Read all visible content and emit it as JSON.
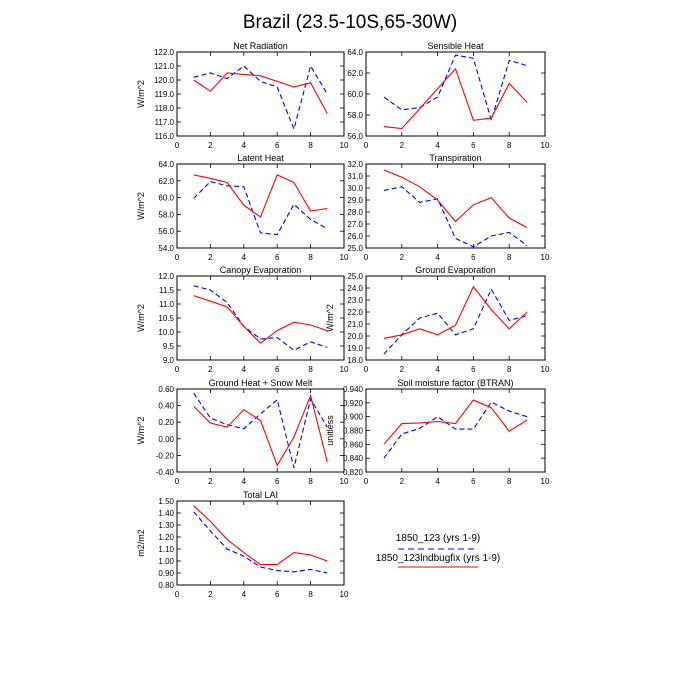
{
  "title": "Brazil (23.5-10S,65-30W)",
  "legend": {
    "entries": [
      {
        "label": "1850_123 (yrs 1-9)",
        "style": "dashed",
        "color": "#0000ff"
      },
      {
        "label": "1850_123lndbugfix (yrs 1-9)",
        "style": "solid",
        "color": "#ff0000"
      }
    ]
  },
  "chart_data": [
    {
      "type": "line",
      "title": "Net Radiation",
      "xlabel": "",
      "ylabel": "W/m^2",
      "xlim": [
        0,
        10
      ],
      "ylim": [
        116.0,
        122.0
      ],
      "xticks": [
        0,
        2,
        4,
        6,
        8,
        10
      ],
      "yticks": [
        116.0,
        117.0,
        118.0,
        119.0,
        120.0,
        121.0,
        122.0
      ],
      "x": [
        1,
        2,
        3,
        4,
        5,
        6,
        7,
        8,
        9
      ],
      "series": [
        {
          "name": "1850_123 (yrs 1-9)",
          "color": "#0000ff",
          "style": "dashed",
          "values": [
            120.2,
            120.5,
            120.1,
            121.0,
            119.9,
            119.5,
            116.5,
            121.0,
            119.0
          ]
        },
        {
          "name": "1850_123lndbugfix (yrs 1-9)",
          "color": "#ff0000",
          "style": "solid",
          "values": [
            120.0,
            119.2,
            120.5,
            120.4,
            120.3,
            119.9,
            119.5,
            119.8,
            117.6
          ]
        }
      ]
    },
    {
      "type": "line",
      "title": "Sensible Heat",
      "xlabel": "",
      "ylabel": "",
      "xlim": [
        0,
        10
      ],
      "ylim": [
        56.0,
        64.0
      ],
      "xticks": [
        0,
        2,
        4,
        6,
        8,
        10
      ],
      "yticks": [
        56.0,
        58.0,
        60.0,
        62.0,
        64.0
      ],
      "x": [
        1,
        2,
        3,
        4,
        5,
        6,
        7,
        8,
        9
      ],
      "series": [
        {
          "name": "1850_123 (yrs 1-9)",
          "color": "#0000ff",
          "style": "dashed",
          "values": [
            59.7,
            58.5,
            58.7,
            59.7,
            63.7,
            63.4,
            57.5,
            63.2,
            62.7
          ]
        },
        {
          "name": "1850_123lndbugfix (yrs 1-9)",
          "color": "#ff0000",
          "style": "solid",
          "values": [
            56.9,
            56.7,
            58.6,
            60.5,
            62.4,
            57.5,
            57.7,
            61.0,
            59.2
          ]
        }
      ]
    },
    {
      "type": "line",
      "title": "Latent Heat",
      "xlabel": "",
      "ylabel": "W/m^2",
      "xlim": [
        0,
        10
      ],
      "ylim": [
        54.0,
        64.0
      ],
      "xticks": [
        0,
        2,
        4,
        6,
        8,
        10
      ],
      "yticks": [
        54.0,
        56.0,
        58.0,
        60.0,
        62.0,
        64.0
      ],
      "x": [
        1,
        2,
        3,
        4,
        5,
        6,
        7,
        8,
        9
      ],
      "series": [
        {
          "name": "1850_123 (yrs 1-9)",
          "color": "#0000ff",
          "style": "dashed",
          "values": [
            59.9,
            61.9,
            61.4,
            61.3,
            55.8,
            55.6,
            59.2,
            57.4,
            56.3
          ]
        },
        {
          "name": "1850_123lndbugfix (yrs 1-9)",
          "color": "#ff0000",
          "style": "solid",
          "values": [
            62.7,
            62.3,
            61.8,
            59.1,
            57.7,
            62.7,
            61.8,
            58.4,
            58.7
          ]
        }
      ]
    },
    {
      "type": "line",
      "title": "Transpiration",
      "xlabel": "",
      "ylabel": "",
      "xlim": [
        0,
        10
      ],
      "ylim": [
        25.0,
        32.0
      ],
      "xticks": [
        0,
        2,
        4,
        6,
        8,
        10
      ],
      "yticks": [
        25.0,
        26.0,
        27.0,
        28.0,
        29.0,
        30.0,
        31.0,
        32.0
      ],
      "x": [
        1,
        2,
        3,
        4,
        5,
        6,
        7,
        8,
        9
      ],
      "series": [
        {
          "name": "1850_123 (yrs 1-9)",
          "color": "#0000ff",
          "style": "dashed",
          "values": [
            29.8,
            30.1,
            28.8,
            29.1,
            25.8,
            25.1,
            26.0,
            26.3,
            25.2
          ]
        },
        {
          "name": "1850_123lndbugfix (yrs 1-9)",
          "color": "#ff0000",
          "style": "solid",
          "values": [
            31.5,
            30.9,
            30.1,
            29.0,
            27.2,
            28.6,
            29.2,
            27.5,
            26.7
          ]
        }
      ]
    },
    {
      "type": "line",
      "title": "Canopy Evaporation",
      "xlabel": "",
      "ylabel": "W/m^2",
      "xlim": [
        0,
        10
      ],
      "ylim": [
        9.0,
        12.0
      ],
      "xticks": [
        0,
        2,
        4,
        6,
        8,
        10
      ],
      "yticks": [
        9.0,
        9.5,
        10.0,
        10.5,
        11.0,
        11.5,
        12.0
      ],
      "x": [
        1,
        2,
        3,
        4,
        5,
        6,
        7,
        8,
        9
      ],
      "series": [
        {
          "name": "1850_123 (yrs 1-9)",
          "color": "#0000ff",
          "style": "dashed",
          "values": [
            11.65,
            11.5,
            11.05,
            10.2,
            9.75,
            9.8,
            9.35,
            9.65,
            9.45
          ]
        },
        {
          "name": "1850_123lndbugfix (yrs 1-9)",
          "color": "#ff0000",
          "style": "solid",
          "values": [
            11.3,
            11.1,
            10.9,
            10.2,
            9.6,
            10.05,
            10.35,
            10.25,
            10.05
          ]
        }
      ]
    },
    {
      "type": "line",
      "title": "Ground Evaporation",
      "xlabel": "",
      "ylabel": "W/m^2",
      "xlim": [
        0,
        10
      ],
      "ylim": [
        18.0,
        25.0
      ],
      "xticks": [
        0,
        2,
        4,
        6,
        8,
        10
      ],
      "yticks": [
        18.0,
        19.0,
        20.0,
        21.0,
        22.0,
        23.0,
        24.0,
        25.0
      ],
      "x": [
        1,
        2,
        3,
        4,
        5,
        6,
        7,
        8,
        9
      ],
      "series": [
        {
          "name": "1850_123 (yrs 1-9)",
          "color": "#0000ff",
          "style": "dashed",
          "values": [
            18.5,
            20.1,
            21.5,
            21.9,
            20.1,
            20.6,
            23.9,
            21.3,
            21.7
          ]
        },
        {
          "name": "1850_123lndbugfix (yrs 1-9)",
          "color": "#ff0000",
          "style": "solid",
          "values": [
            19.8,
            20.1,
            20.6,
            20.1,
            20.9,
            24.1,
            22.2,
            20.6,
            22.0
          ]
        }
      ]
    },
    {
      "type": "line",
      "title": "Ground Heat + Snow Melt",
      "xlabel": "",
      "ylabel": "W/m^2",
      "xlim": [
        0,
        10
      ],
      "ylim": [
        -0.4,
        0.6
      ],
      "xticks": [
        0,
        2,
        4,
        6,
        8,
        10
      ],
      "yticks": [
        -0.4,
        -0.2,
        0.0,
        0.2,
        0.4,
        0.6
      ],
      "ytick_labels": [
        "-0.40",
        "-0.20",
        "0.00",
        "0.20",
        "0.40",
        "0.60"
      ],
      "x": [
        1,
        2,
        3,
        4,
        5,
        6,
        7,
        8,
        9
      ],
      "series": [
        {
          "name": "1850_123 (yrs 1-9)",
          "color": "#0000ff",
          "style": "dashed",
          "values": [
            0.55,
            0.25,
            0.17,
            0.12,
            0.3,
            0.47,
            -0.35,
            0.48,
            0.14
          ]
        },
        {
          "name": "1850_123lndbugfix (yrs 1-9)",
          "color": "#ff0000",
          "style": "solid",
          "values": [
            0.39,
            0.19,
            0.14,
            0.35,
            0.22,
            -0.32,
            0.02,
            0.52,
            -0.28
          ]
        }
      ]
    },
    {
      "type": "line",
      "title": "Soil moisture factor (BTRAN)",
      "xlabel": "",
      "ylabel": "unitless",
      "xlim": [
        0,
        10
      ],
      "ylim": [
        0.82,
        0.94
      ],
      "xticks": [
        0,
        2,
        4,
        6,
        8,
        10
      ],
      "yticks": [
        0.82,
        0.84,
        0.86,
        0.88,
        0.9,
        0.92,
        0.94
      ],
      "ytick_labels": [
        "0.820",
        "0.840",
        "0.860",
        "0.880",
        "0.900",
        "0.920",
        "0.940"
      ],
      "x": [
        1,
        2,
        3,
        4,
        5,
        6,
        7,
        8,
        9
      ],
      "series": [
        {
          "name": "1850_123 (yrs 1-9)",
          "color": "#0000ff",
          "style": "dashed",
          "values": [
            0.84,
            0.875,
            0.883,
            0.9,
            0.882,
            0.882,
            0.921,
            0.908,
            0.9
          ]
        },
        {
          "name": "1850_123lndbugfix (yrs 1-9)",
          "color": "#ff0000",
          "style": "solid",
          "values": [
            0.86,
            0.89,
            0.891,
            0.893,
            0.89,
            0.924,
            0.913,
            0.879,
            0.895
          ]
        }
      ]
    },
    {
      "type": "line",
      "title": "Total LAI",
      "xlabel": "",
      "ylabel": "m2/m2",
      "xlim": [
        0,
        10
      ],
      "ylim": [
        0.8,
        1.5
      ],
      "xticks": [
        0,
        2,
        4,
        6,
        8,
        10
      ],
      "yticks": [
        0.8,
        0.9,
        1.0,
        1.1,
        1.2,
        1.3,
        1.4,
        1.5
      ],
      "ytick_labels": [
        "0.80",
        "0.90",
        "1.00",
        "1.10",
        "1.20",
        "1.30",
        "1.40",
        "1.50"
      ],
      "x": [
        1,
        2,
        3,
        4,
        5,
        6,
        7,
        8,
        9
      ],
      "series": [
        {
          "name": "1850_123 (yrs 1-9)",
          "color": "#0000ff",
          "style": "dashed",
          "values": [
            1.41,
            1.25,
            1.1,
            1.04,
            0.95,
            0.92,
            0.91,
            0.93,
            0.9
          ]
        },
        {
          "name": "1850_123lndbugfix (yrs 1-9)",
          "color": "#ff0000",
          "style": "solid",
          "values": [
            1.46,
            1.33,
            1.18,
            1.07,
            0.97,
            0.97,
            1.07,
            1.05,
            1.0
          ]
        }
      ]
    }
  ]
}
